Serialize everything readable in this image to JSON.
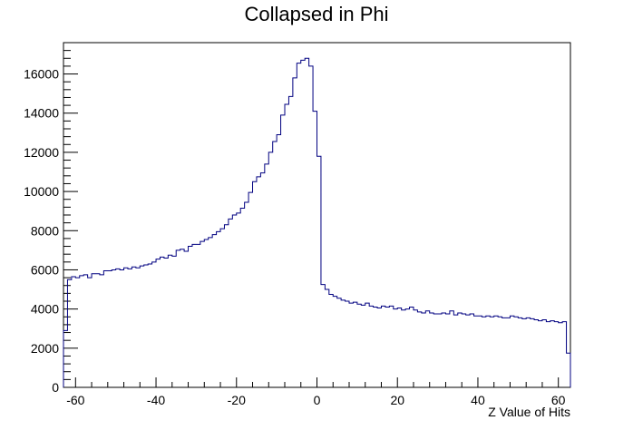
{
  "chart_data": {
    "type": "histogram",
    "title": "Collapsed in Phi",
    "xlabel": "Z Value of Hits",
    "ylabel": "",
    "xlim": [
      -63,
      63
    ],
    "ylim": [
      0,
      17600
    ],
    "bin_width": 1,
    "x_ticks": [
      -60,
      -40,
      -20,
      0,
      20,
      40,
      60
    ],
    "y_ticks": [
      0,
      2000,
      4000,
      6000,
      8000,
      10000,
      12000,
      14000,
      16000
    ],
    "grid": false,
    "legend": "none",
    "line_color": "#000080",
    "x": [
      -63,
      -62,
      -61,
      -60,
      -59,
      -58,
      -57,
      -56,
      -55,
      -54,
      -53,
      -52,
      -51,
      -50,
      -49,
      -48,
      -47,
      -46,
      -45,
      -44,
      -43,
      -42,
      -41,
      -40,
      -39,
      -38,
      -37,
      -36,
      -35,
      -34,
      -33,
      -32,
      -31,
      -30,
      -29,
      -28,
      -27,
      -26,
      -25,
      -24,
      -23,
      -22,
      -21,
      -20,
      -19,
      -18,
      -17,
      -16,
      -15,
      -14,
      -13,
      -12,
      -11,
      -10,
      -9,
      -8,
      -7,
      -6,
      -5,
      -4,
      -3,
      -2,
      -1,
      0,
      1,
      2,
      3,
      4,
      5,
      6,
      7,
      8,
      9,
      10,
      11,
      12,
      13,
      14,
      15,
      16,
      17,
      18,
      19,
      20,
      21,
      22,
      23,
      24,
      25,
      26,
      27,
      28,
      29,
      30,
      31,
      32,
      33,
      34,
      35,
      36,
      37,
      38,
      39,
      40,
      41,
      42,
      43,
      44,
      45,
      46,
      47,
      48,
      49,
      50,
      51,
      52,
      53,
      54,
      55,
      56,
      57,
      58,
      59,
      60,
      61,
      62
    ],
    "values": [
      2900,
      5500,
      5650,
      5600,
      5700,
      5750,
      5600,
      5800,
      5800,
      5750,
      5950,
      5950,
      6000,
      6050,
      6000,
      6100,
      6050,
      6150,
      6100,
      6200,
      6250,
      6300,
      6400,
      6550,
      6650,
      6600,
      6750,
      6700,
      7000,
      7050,
      6950,
      7200,
      7300,
      7300,
      7450,
      7550,
      7650,
      7800,
      7950,
      8100,
      8300,
      8600,
      8800,
      8900,
      9150,
      9450,
      9950,
      10500,
      10750,
      10950,
      11400,
      12000,
      12550,
      12900,
      13900,
      14450,
      14850,
      15800,
      16550,
      16700,
      16800,
      16400,
      14100,
      11800,
      5250,
      5000,
      4750,
      4650,
      4550,
      4450,
      4400,
      4300,
      4350,
      4250,
      4200,
      4300,
      4150,
      4100,
      4050,
      4150,
      4100,
      4150,
      4000,
      4050,
      3950,
      4000,
      4100,
      3950,
      3850,
      3800,
      3900,
      3800,
      3750,
      3750,
      3800,
      3750,
      3900,
      3700,
      3800,
      3750,
      3700,
      3750,
      3650,
      3650,
      3600,
      3650,
      3600,
      3650,
      3600,
      3550,
      3550,
      3650,
      3600,
      3550,
      3500,
      3550,
      3500,
      3450,
      3400,
      3450,
      3350,
      3400,
      3350,
      3300,
      3350,
      1750
    ]
  }
}
